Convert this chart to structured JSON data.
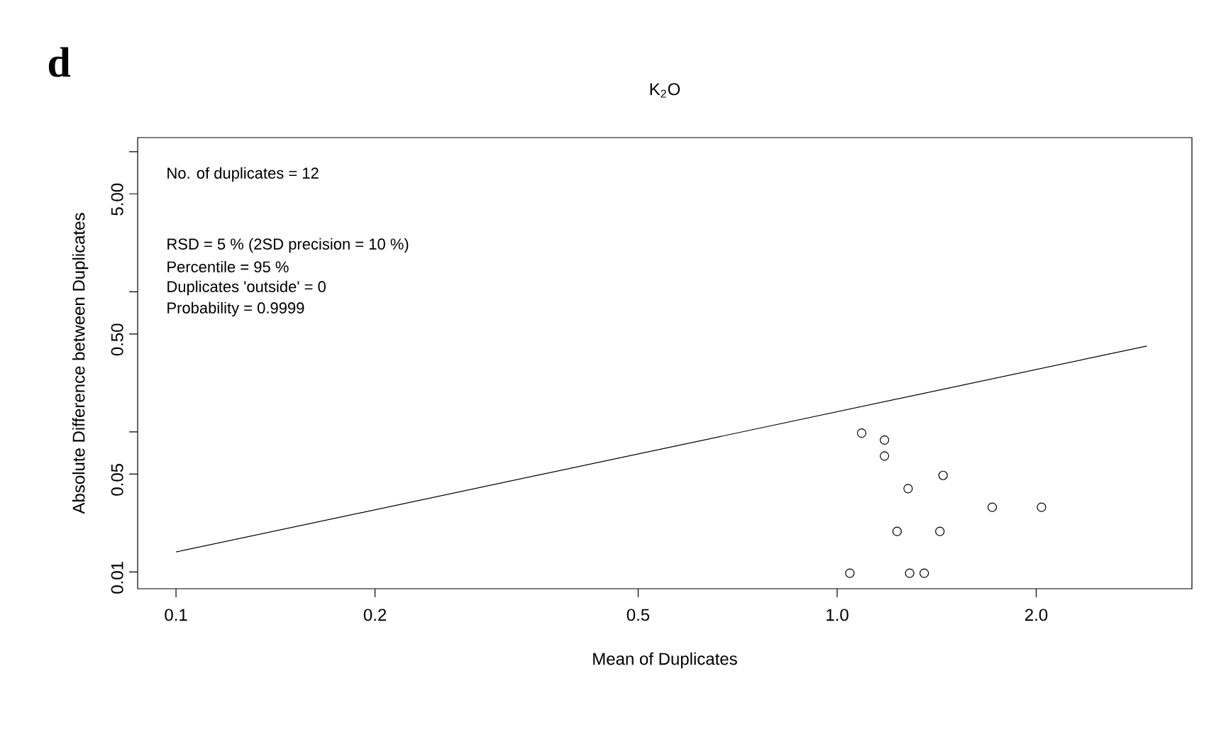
{
  "chart_data": {
    "type": "scatter",
    "title": "K$_{2}$O",
    "xlabel": "Mean of Duplicates",
    "ylabel": "Absolute Difference between Duplicates",
    "log": "xy",
    "grid": false,
    "xlim": [
      0.0875,
      3.44
    ],
    "ylim": [
      0.0076,
      12.6
    ],
    "xticks": [
      0.1,
      0.2,
      0.5,
      {
        "value": 1,
        "label": "1.0"
      },
      {
        "value": 2,
        "label": "2.0"
      }
    ],
    "yticks": [
      0.01,
      0.05,
      {
        "value": 0.1,
        "label": null
      },
      {
        "value": 0.5,
        "label": "0.50"
      },
      {
        "value": 1,
        "label": null
      },
      {
        "value": 5,
        "label": "5.00"
      },
      {
        "value": 10,
        "label": null
      }
    ],
    "annotations": [
      "d",
      "No. of  duplicates = 12",
      "RSD = 5 % (2SD precision = 10 %)",
      "Percentile = 95 %",
      "Duplicates 'outside' = 0",
      "Probability = 0.9999"
    ],
    "series": [
      {
        "type": "line",
        "x": [
          0.1,
          2.94
        ],
        "values": [
          0.0139,
          0.41
        ],
        "color": "#000000",
        "marker": "none",
        "line_style": "solid"
      },
      {
        "x": [
          1.089,
          1.179,
          1.179,
          1.446,
          1.28,
          1.716,
          2.037,
          1.232,
          1.43,
          1.045,
          1.287,
          1.354
        ],
        "values": [
          0.098,
          0.0875,
          0.0673,
          0.0489,
          0.0394,
          0.029,
          0.029,
          0.0195,
          0.0195,
          0.0098,
          0.0098,
          0.0098
        ],
        "color": "#000000",
        "marker": "circle"
      }
    ]
  }
}
